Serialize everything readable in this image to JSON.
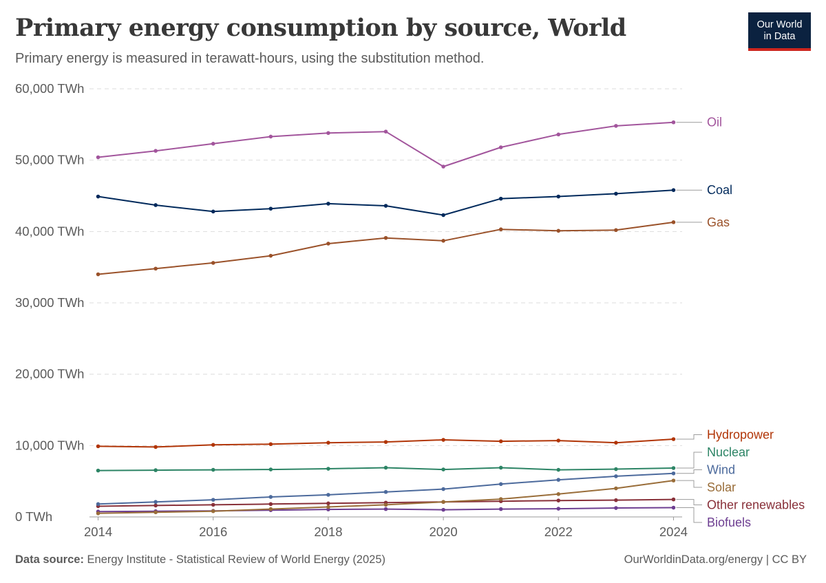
{
  "header": {
    "title": "Primary energy consumption by source, World",
    "subtitle": "Primary energy is measured in terawatt-hours, using the substitution method."
  },
  "logo": {
    "line1": "Our World",
    "line2": "in Data"
  },
  "footer": {
    "source_label": "Data source:",
    "source_text": "Energy Institute - Statistical Review of World Energy (2025)",
    "right": "OurWorldinData.org/energy | CC BY"
  },
  "colors": {
    "oil": "#a2559c",
    "coal": "#00295b",
    "gas": "#9a5129",
    "hydropower": "#b13507",
    "nuclear": "#2c8465",
    "wind": "#4c6a9c",
    "solar": "#996d39",
    "other_renewables": "#883039",
    "biofuels": "#6d3e91",
    "grid": "#dddddd",
    "axis_text": "#5b5b5b"
  },
  "chart_data": {
    "type": "line",
    "x": [
      2014,
      2015,
      2016,
      2017,
      2018,
      2019,
      2020,
      2021,
      2022,
      2023,
      2024
    ],
    "xticks": [
      2014,
      2016,
      2018,
      2020,
      2022,
      2024
    ],
    "xtick_labels": [
      "2014",
      "2016",
      "2018",
      "2020",
      "2022",
      "2024"
    ],
    "yticks": [
      0,
      10000,
      20000,
      30000,
      40000,
      50000,
      60000
    ],
    "ytick_labels": [
      "0 TWh",
      "10,000 TWh",
      "20,000 TWh",
      "30,000 TWh",
      "40,000 TWh",
      "50,000 TWh",
      "60,000 TWh"
    ],
    "xlim": [
      2014,
      2024
    ],
    "ylim": [
      0,
      60000
    ],
    "grid": true,
    "legend": "right, labels at line ends",
    "series": [
      {
        "name": "Oil",
        "key": "oil",
        "values": [
          50400,
          51300,
          52300,
          53300,
          53800,
          54000,
          49100,
          51800,
          53600,
          54800,
          55300
        ]
      },
      {
        "name": "Coal",
        "key": "coal",
        "values": [
          44900,
          43700,
          42800,
          43200,
          43900,
          43600,
          42300,
          44600,
          44900,
          45300,
          45800
        ]
      },
      {
        "name": "Gas",
        "key": "gas",
        "values": [
          34000,
          34800,
          35600,
          36600,
          38300,
          39100,
          38700,
          40300,
          40100,
          40200,
          41300
        ]
      },
      {
        "name": "Hydropower",
        "key": "hydropower",
        "values": [
          9900,
          9800,
          10100,
          10200,
          10400,
          10500,
          10800,
          10600,
          10700,
          10400,
          10900
        ]
      },
      {
        "name": "Nuclear",
        "key": "nuclear",
        "values": [
          6500,
          6550,
          6600,
          6650,
          6750,
          6900,
          6650,
          6900,
          6600,
          6700,
          6850
        ]
      },
      {
        "name": "Wind",
        "key": "wind",
        "values": [
          1800,
          2100,
          2400,
          2800,
          3100,
          3500,
          3900,
          4600,
          5200,
          5700,
          6100
        ]
      },
      {
        "name": "Solar",
        "key": "solar",
        "values": [
          500,
          650,
          800,
          1100,
          1400,
          1700,
          2100,
          2500,
          3200,
          4000,
          5100
        ]
      },
      {
        "name": "Other renewables",
        "key": "other_renewables",
        "values": [
          1500,
          1600,
          1700,
          1800,
          1900,
          2000,
          2100,
          2200,
          2300,
          2350,
          2450
        ]
      },
      {
        "name": "Biofuels",
        "key": "biofuels",
        "values": [
          750,
          800,
          850,
          950,
          1050,
          1100,
          1000,
          1100,
          1150,
          1250,
          1300
        ]
      }
    ],
    "labels_order": [
      "oil",
      "coal",
      "gas",
      "hydropower",
      "nuclear",
      "wind",
      "solar",
      "other_renewables",
      "biofuels"
    ]
  }
}
